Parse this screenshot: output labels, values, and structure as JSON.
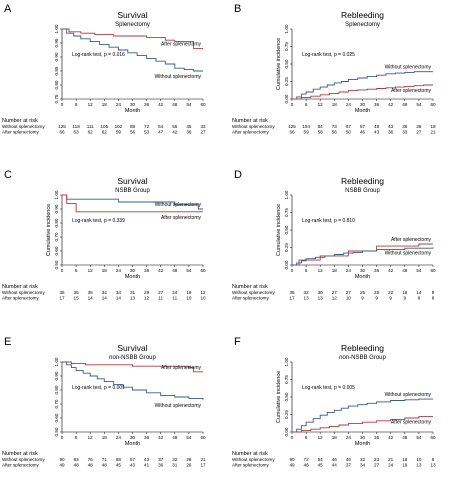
{
  "chart_data": [
    {
      "letter": "A",
      "type": "line",
      "title": "Survival",
      "subtitle": "Splenectomy",
      "xlabel": "Month",
      "ylabel": "",
      "x_ticks": [
        0,
        6,
        12,
        18,
        24,
        30,
        36,
        42,
        48,
        54,
        60
      ],
      "y_ticks": [
        "1.00",
        "0.95",
        "0.90",
        "0.85",
        "0.80",
        "0.75"
      ],
      "ylim": [
        0.75,
        1.0
      ],
      "annotation": "Log-rank test, p = 0.016",
      "series": [
        {
          "name": "After splenectomy",
          "color": "#b23a3a",
          "x": [
            0,
            3,
            8,
            14,
            22,
            28,
            36,
            44,
            48,
            52,
            56,
            60
          ],
          "y": [
            1.0,
            0.99,
            0.985,
            0.98,
            0.975,
            0.975,
            0.97,
            0.96,
            0.955,
            0.955,
            0.93,
            0.93
          ]
        },
        {
          "name": "Without splenectomy",
          "color": "#3a5a8a",
          "x": [
            0,
            2,
            5,
            8,
            12,
            16,
            20,
            24,
            28,
            32,
            36,
            40,
            44,
            48,
            52,
            56,
            60
          ],
          "y": [
            1.0,
            0.985,
            0.975,
            0.965,
            0.955,
            0.945,
            0.935,
            0.925,
            0.915,
            0.905,
            0.895,
            0.885,
            0.875,
            0.86,
            0.855,
            0.85,
            0.85
          ]
        }
      ],
      "risk_title": "Number at risk",
      "risk_rows": [
        {
          "label": "Without splenectomy",
          "values": [
            "125",
            "118",
            "111",
            "105",
            "102",
            "88",
            "72",
            "64",
            "56",
            "45",
            "33"
          ]
        },
        {
          "label": "After splenectomy",
          "values": [
            "66",
            "63",
            "62",
            "62",
            "59",
            "56",
            "53",
            "47",
            "42",
            "36",
            "27"
          ]
        }
      ]
    },
    {
      "letter": "B",
      "type": "line",
      "title": "Rebleeding",
      "subtitle": "Splenectomy",
      "xlabel": "Month",
      "ylabel": "Cumulative incidence",
      "x_ticks": [
        0,
        6,
        12,
        18,
        24,
        30,
        36,
        42,
        48,
        54,
        60
      ],
      "y_ticks": [
        "0.00",
        "0.25",
        "0.50",
        "0.75",
        "1.00"
      ],
      "ylim": [
        0,
        1.0
      ],
      "annotation": "Log-rank test, p = 0.025",
      "series": [
        {
          "name": "Without splenectomy",
          "color": "#3a5a8a",
          "x": [
            0,
            2,
            4,
            6,
            9,
            12,
            15,
            18,
            21,
            24,
            28,
            32,
            36,
            40,
            44,
            48,
            52,
            56,
            60
          ],
          "y": [
            0,
            0.03,
            0.07,
            0.1,
            0.14,
            0.17,
            0.2,
            0.23,
            0.25,
            0.28,
            0.3,
            0.32,
            0.34,
            0.36,
            0.37,
            0.38,
            0.39,
            0.39,
            0.39
          ]
        },
        {
          "name": "After splenectomy",
          "color": "#b23a3a",
          "x": [
            0,
            4,
            8,
            12,
            16,
            20,
            24,
            28,
            32,
            36,
            40,
            44,
            48,
            52,
            56,
            60
          ],
          "y": [
            0,
            0.02,
            0.04,
            0.06,
            0.08,
            0.1,
            0.12,
            0.13,
            0.14,
            0.15,
            0.16,
            0.17,
            0.18,
            0.19,
            0.2,
            0.2
          ]
        }
      ],
      "risk_title": "Number at risk",
      "risk_rows": [
        {
          "label": "Without splenectomy",
          "values": [
            "125",
            "104",
            "84",
            "73",
            "67",
            "57",
            "48",
            "43",
            "36",
            "28",
            "19"
          ]
        },
        {
          "label": "After splenectomy",
          "values": [
            "66",
            "59",
            "58",
            "56",
            "50",
            "46",
            "43",
            "36",
            "33",
            "27",
            "21"
          ]
        }
      ]
    },
    {
      "letter": "C",
      "type": "line",
      "title": "Survival",
      "subtitle": "NSBB Group",
      "xlabel": "Month",
      "ylabel": "Cumulative incidence",
      "x_ticks": [
        0,
        6,
        12,
        18,
        24,
        30,
        36,
        42,
        48,
        54,
        60
      ],
      "y_ticks": [
        "1.00",
        "0.90",
        "0.80",
        "0.70",
        "0.60",
        "0.50"
      ],
      "ylim": [
        0.5,
        1.0
      ],
      "annotation": "Log-rank test, p = 0.339",
      "series": [
        {
          "name": "Without splenectomy",
          "color": "#3a5a8a",
          "x": [
            0,
            2,
            6,
            24,
            36,
            48,
            54,
            58,
            60
          ],
          "y": [
            1.0,
            0.97,
            0.97,
            0.95,
            0.95,
            0.93,
            0.93,
            0.9,
            0.9
          ]
        },
        {
          "name": "After splenectomy",
          "color": "#b23a3a",
          "x": [
            0,
            2,
            6,
            24,
            36,
            54,
            60
          ],
          "y": [
            1.0,
            0.94,
            0.88,
            0.88,
            0.88,
            0.88,
            0.88
          ]
        }
      ],
      "risk_title": "Number at risk",
      "risk_rows": [
        {
          "label": "Without splenectomy",
          "values": [
            "35",
            "35",
            "35",
            "34",
            "34",
            "31",
            "29",
            "27",
            "24",
            "19",
            "12"
          ]
        },
        {
          "label": "After splenectomy",
          "values": [
            "17",
            "15",
            "14",
            "14",
            "14",
            "13",
            "12",
            "11",
            "11",
            "10",
            "10"
          ]
        }
      ]
    },
    {
      "letter": "D",
      "type": "line",
      "title": "Rebleeding",
      "subtitle": "NSBB Group",
      "xlabel": "Month",
      "ylabel": "Cumulative incidence",
      "x_ticks": [
        0,
        6,
        12,
        18,
        24,
        30,
        36,
        42,
        48,
        54,
        60
      ],
      "y_ticks": [
        "0.00",
        "0.25",
        "0.50",
        "0.75",
        "1.00"
      ],
      "ylim": [
        0,
        1.0
      ],
      "annotation": "Log-rank test, p = 0.810",
      "series": [
        {
          "name": "After splenectomy",
          "color": "#b23a3a",
          "x": [
            0,
            3,
            6,
            12,
            18,
            22,
            24,
            30,
            36,
            42,
            48,
            54,
            60
          ],
          "y": [
            0,
            0.07,
            0.07,
            0.13,
            0.13,
            0.13,
            0.2,
            0.2,
            0.27,
            0.27,
            0.27,
            0.3,
            0.3
          ]
        },
        {
          "name": "Without splenectomy",
          "color": "#3a5a8a",
          "x": [
            0,
            2,
            4,
            6,
            10,
            14,
            18,
            22,
            26,
            30,
            36,
            42,
            48,
            54,
            60
          ],
          "y": [
            0,
            0.03,
            0.06,
            0.09,
            0.11,
            0.13,
            0.15,
            0.17,
            0.18,
            0.2,
            0.22,
            0.22,
            0.24,
            0.24,
            0.25
          ]
        }
      ],
      "risk_title": "Number at risk",
      "risk_rows": [
        {
          "label": "Without splenectomy",
          "values": [
            "35",
            "32",
            "30",
            "27",
            "27",
            "25",
            "25",
            "22",
            "18",
            "14",
            "9"
          ]
        },
        {
          "label": "After splenectomy",
          "values": [
            "17",
            "13",
            "13",
            "12",
            "10",
            "9",
            "9",
            "9",
            "9",
            "8",
            "8"
          ]
        }
      ]
    },
    {
      "letter": "E",
      "type": "line",
      "title": "Survival",
      "subtitle": "non-NSBB Group",
      "xlabel": "Month",
      "ylabel": "",
      "x_ticks": [
        0,
        6,
        12,
        18,
        24,
        30,
        36,
        42,
        48,
        54,
        60
      ],
      "y_ticks": [
        "1.00",
        "0.90",
        "0.80",
        "0.70",
        "0.60",
        "0.50"
      ],
      "ylim": [
        0.5,
        1.0
      ],
      "annotation": "Log-rank test, p = 0.001",
      "series": [
        {
          "name": "After splenectomy",
          "color": "#b23a3a",
          "x": [
            0,
            4,
            10,
            20,
            30,
            40,
            48,
            54,
            56,
            60
          ],
          "y": [
            1.0,
            0.99,
            0.98,
            0.98,
            0.97,
            0.97,
            0.97,
            0.96,
            0.93,
            0.93
          ]
        },
        {
          "name": "Without splenectomy",
          "color": "#3a5a8a",
          "x": [
            0,
            2,
            4,
            6,
            9,
            12,
            15,
            18,
            22,
            26,
            30,
            36,
            42,
            48,
            54,
            60
          ],
          "y": [
            1.0,
            0.98,
            0.96,
            0.94,
            0.92,
            0.9,
            0.88,
            0.86,
            0.84,
            0.82,
            0.8,
            0.78,
            0.76,
            0.75,
            0.74,
            0.73
          ]
        }
      ],
      "risk_title": "Number at risk",
      "risk_rows": [
        {
          "label": "Without splenectomy",
          "values": [
            "90",
            "83",
            "76",
            "71",
            "68",
            "57",
            "43",
            "37",
            "32",
            "26",
            "21"
          ]
        },
        {
          "label": "After splenectomy",
          "values": [
            "49",
            "48",
            "48",
            "48",
            "45",
            "43",
            "41",
            "36",
            "31",
            "26",
            "17"
          ]
        }
      ]
    },
    {
      "letter": "F",
      "type": "line",
      "title": "Rebleeding",
      "subtitle": "non-NSBB Group",
      "xlabel": "Month",
      "ylabel": "Cumulative incidence",
      "x_ticks": [
        0,
        6,
        12,
        18,
        24,
        30,
        36,
        42,
        48,
        54,
        60
      ],
      "y_ticks": [
        "0.00",
        "0.25",
        "0.50",
        "0.75",
        "1.00"
      ],
      "ylim": [
        0,
        1.0
      ],
      "annotation": "Log-rank test, p = 0.005",
      "series": [
        {
          "name": "Without splenectomy",
          "color": "#3a5a8a",
          "x": [
            0,
            2,
            4,
            6,
            9,
            12,
            15,
            18,
            21,
            24,
            28,
            32,
            36,
            42,
            48,
            54,
            60
          ],
          "y": [
            0,
            0.04,
            0.09,
            0.14,
            0.19,
            0.24,
            0.28,
            0.31,
            0.34,
            0.37,
            0.39,
            0.41,
            0.43,
            0.45,
            0.46,
            0.47,
            0.47
          ]
        },
        {
          "name": "After splenectomy",
          "color": "#b23a3a",
          "x": [
            0,
            4,
            8,
            12,
            16,
            20,
            24,
            30,
            36,
            42,
            48,
            54,
            60
          ],
          "y": [
            0,
            0.02,
            0.04,
            0.06,
            0.08,
            0.1,
            0.12,
            0.14,
            0.16,
            0.18,
            0.2,
            0.22,
            0.22
          ]
        }
      ],
      "risk_title": "Number at risk",
      "risk_rows": [
        {
          "label": "Without splenectomy",
          "values": [
            "90",
            "72",
            "54",
            "46",
            "40",
            "32",
            "23",
            "21",
            "18",
            "10",
            "6"
          ]
        },
        {
          "label": "After splenectomy",
          "values": [
            "49",
            "46",
            "45",
            "44",
            "37",
            "34",
            "27",
            "24",
            "19",
            "13",
            "13"
          ]
        }
      ]
    }
  ]
}
